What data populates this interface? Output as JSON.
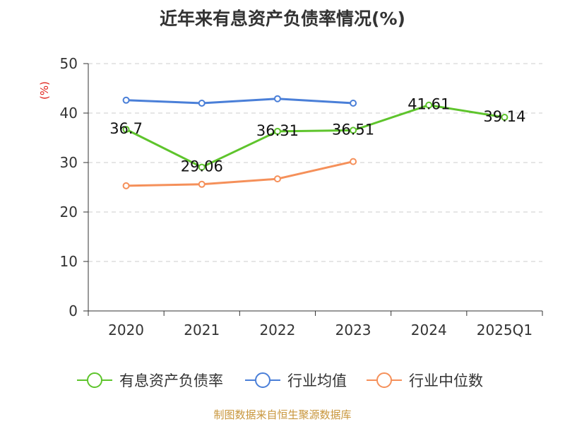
{
  "chart_data": {
    "type": "line",
    "title": "近年来有息资产负债率情况(%)",
    "ylabel": "(%)",
    "xlabel": "",
    "categories": [
      "2020",
      "2021",
      "2022",
      "2023",
      "2024",
      "2025Q1"
    ],
    "ylim": [
      0,
      50
    ],
    "yticks": [
      0,
      10,
      20,
      30,
      40,
      50
    ],
    "grid": true,
    "legend_position": "bottom",
    "series": [
      {
        "name": "有息资产负债率",
        "color": "#5ec42c",
        "values": [
          36.7,
          29.06,
          36.31,
          36.51,
          41.61,
          39.14
        ],
        "labels": [
          "36.7",
          "29.06",
          "36.31",
          "36.51",
          "41.61",
          "39.14"
        ]
      },
      {
        "name": "行业均值",
        "color": "#4a7fd8",
        "values": [
          42.6,
          42.0,
          42.9,
          42.0,
          null,
          null
        ]
      },
      {
        "name": "行业中位数",
        "color": "#f5905a",
        "values": [
          25.3,
          25.6,
          26.7,
          30.2,
          null,
          null
        ]
      }
    ]
  },
  "footer": {
    "source": "制图数据来自恒生聚源数据库"
  }
}
